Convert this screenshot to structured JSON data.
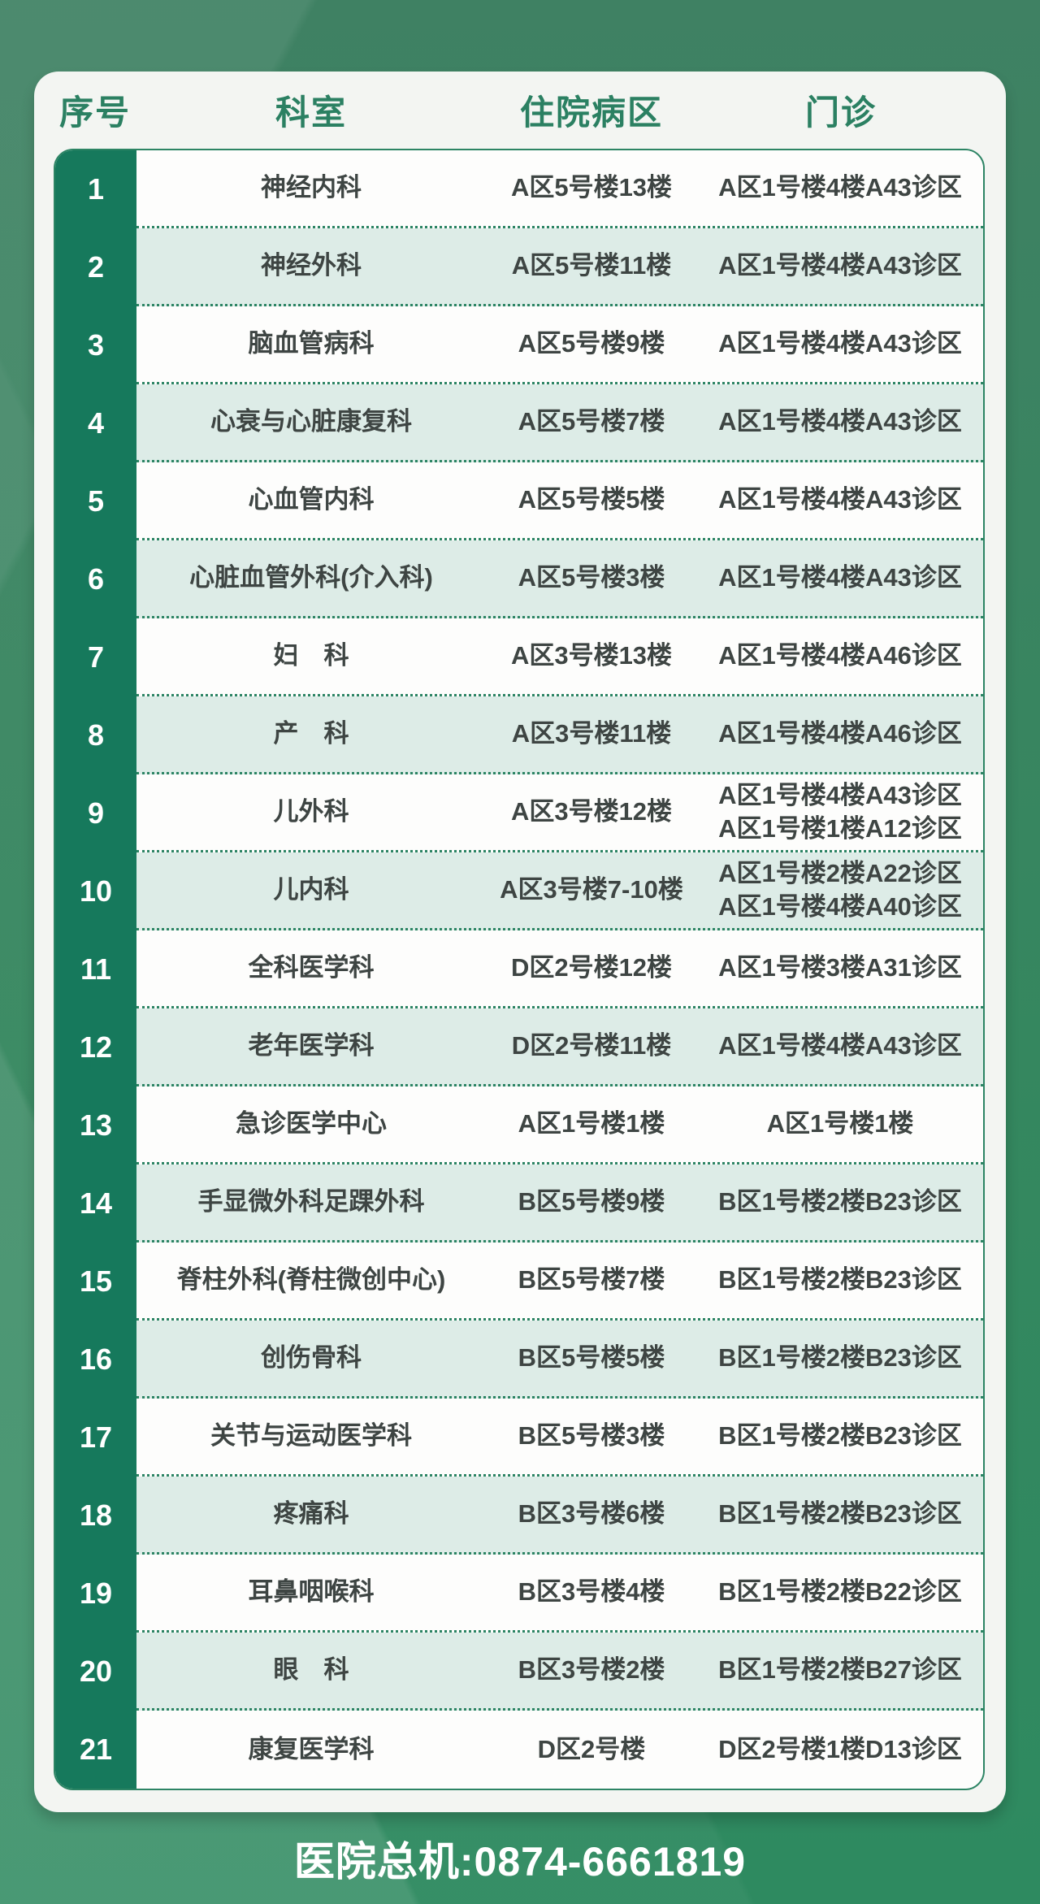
{
  "table": {
    "headers": {
      "index": "序号",
      "department": "科室",
      "ward": "住院病区",
      "clinic": "门诊"
    },
    "rows": [
      {
        "index": "1",
        "department": "神经内科",
        "ward": "A区5号楼13楼",
        "clinic": [
          "A区1号楼4楼A43诊区"
        ]
      },
      {
        "index": "2",
        "department": "神经外科",
        "ward": "A区5号楼11楼",
        "clinic": [
          "A区1号楼4楼A43诊区"
        ]
      },
      {
        "index": "3",
        "department": "脑血管病科",
        "ward": "A区5号楼9楼",
        "clinic": [
          "A区1号楼4楼A43诊区"
        ]
      },
      {
        "index": "4",
        "department": "心衰与心脏康复科",
        "ward": "A区5号楼7楼",
        "clinic": [
          "A区1号楼4楼A43诊区"
        ]
      },
      {
        "index": "5",
        "department": "心血管内科",
        "ward": "A区5号楼5楼",
        "clinic": [
          "A区1号楼4楼A43诊区"
        ]
      },
      {
        "index": "6",
        "department": "心脏血管外科(介入科)",
        "ward": "A区5号楼3楼",
        "clinic": [
          "A区1号楼4楼A43诊区"
        ]
      },
      {
        "index": "7",
        "department": "妇　科",
        "ward": "A区3号楼13楼",
        "clinic": [
          "A区1号楼4楼A46诊区"
        ]
      },
      {
        "index": "8",
        "department": "产　科",
        "ward": "A区3号楼11楼",
        "clinic": [
          "A区1号楼4楼A46诊区"
        ]
      },
      {
        "index": "9",
        "department": "儿外科",
        "ward": "A区3号楼12楼",
        "clinic": [
          "A区1号楼4楼A43诊区",
          "A区1号楼1楼A12诊区"
        ]
      },
      {
        "index": "10",
        "department": "儿内科",
        "ward": "A区3号楼7-10楼",
        "clinic": [
          "A区1号楼2楼A22诊区",
          "A区1号楼4楼A40诊区"
        ]
      },
      {
        "index": "11",
        "department": "全科医学科",
        "ward": "D区2号楼12楼",
        "clinic": [
          "A区1号楼3楼A31诊区"
        ]
      },
      {
        "index": "12",
        "department": "老年医学科",
        "ward": "D区2号楼11楼",
        "clinic": [
          "A区1号楼4楼A43诊区"
        ]
      },
      {
        "index": "13",
        "department": "急诊医学中心",
        "ward": "A区1号楼1楼",
        "clinic": [
          "A区1号楼1楼"
        ]
      },
      {
        "index": "14",
        "department": "手显微外科足踝外科",
        "ward": "B区5号楼9楼",
        "clinic": [
          "B区1号楼2楼B23诊区"
        ]
      },
      {
        "index": "15",
        "department": "脊柱外科(脊柱微创中心)",
        "ward": "B区5号楼7楼",
        "clinic": [
          "B区1号楼2楼B23诊区"
        ]
      },
      {
        "index": "16",
        "department": "创伤骨科",
        "ward": "B区5号楼5楼",
        "clinic": [
          "B区1号楼2楼B23诊区"
        ]
      },
      {
        "index": "17",
        "department": "关节与运动医学科",
        "ward": "B区5号楼3楼",
        "clinic": [
          "B区1号楼2楼B23诊区"
        ]
      },
      {
        "index": "18",
        "department": "疼痛科",
        "ward": "B区3号楼6楼",
        "clinic": [
          "B区1号楼2楼B23诊区"
        ]
      },
      {
        "index": "19",
        "department": "耳鼻咽喉科",
        "ward": "B区3号楼4楼",
        "clinic": [
          "B区1号楼2楼B22诊区"
        ]
      },
      {
        "index": "20",
        "department": "眼　科",
        "ward": "B区3号楼2楼",
        "clinic": [
          "B区1号楼2楼B27诊区"
        ]
      },
      {
        "index": "21",
        "department": "康复医学科",
        "ward": "D区2号楼",
        "clinic": [
          "D区2号楼1楼D13诊区"
        ]
      }
    ]
  },
  "footer": {
    "hotline": "医院总机:0874-6661819"
  },
  "colors": {
    "background_green": "#35875f",
    "card_background": "#f3f5f2",
    "index_column_green": "#16795c",
    "table_border_green": "#2c8464",
    "alt_row_mint": "#ddece7",
    "header_text_green": "#2b8062",
    "cell_text": "#3e4543",
    "footer_text": "#ffffff"
  }
}
